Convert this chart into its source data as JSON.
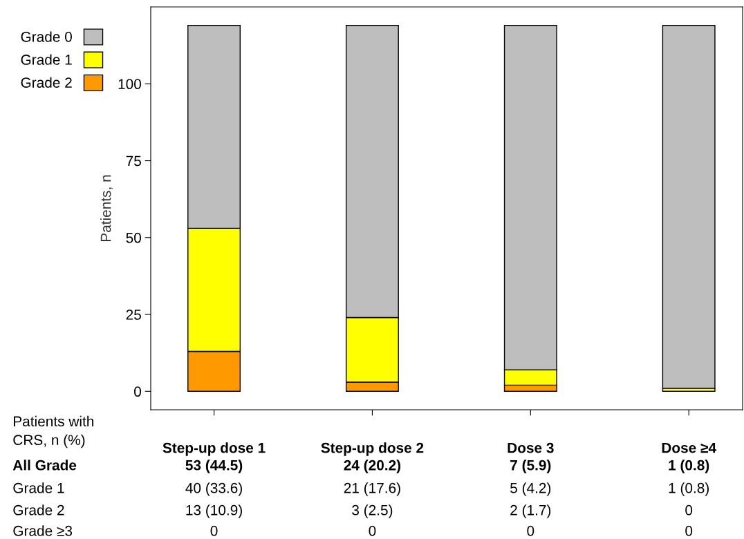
{
  "chart_data": {
    "type": "bar",
    "stacked": true,
    "ylabel": "Patients, n",
    "categories": [
      "Step-up dose 1",
      "Step-up dose 2",
      "Dose 3",
      "Dose ≥4"
    ],
    "series": [
      {
        "name": "Grade 2",
        "color": "#ff9900",
        "values": [
          13,
          3,
          2,
          0
        ],
        "value_labels": [
          "13 (10.9)",
          "3 (2.5)",
          "2 (1.7)",
          "0"
        ]
      },
      {
        "name": "Grade 1",
        "color": "#ffff00",
        "values": [
          40,
          21,
          5,
          1
        ],
        "value_labels": [
          "40 (33.6)",
          "21 (17.6)",
          "5 (4.2)",
          "1 (0.8)"
        ]
      },
      {
        "name": "Grade 0",
        "color": "#bebebe",
        "values": [
          66,
          95,
          112,
          118
        ]
      }
    ],
    "ylim": [
      -6,
      125
    ],
    "yticks": [
      0,
      25,
      50,
      75,
      100
    ],
    "grid": false,
    "legend": "top left",
    "annotations": [
      "Patients with\nCRS, n (%)",
      "All Grade",
      "53 (44.5)",
      "24 (20.2)",
      "7 (5.9)",
      "1 (0.8)",
      "Grade 1",
      "Grade 2",
      "Grade ≥3",
      "0",
      "0",
      "0",
      "0"
    ]
  }
}
